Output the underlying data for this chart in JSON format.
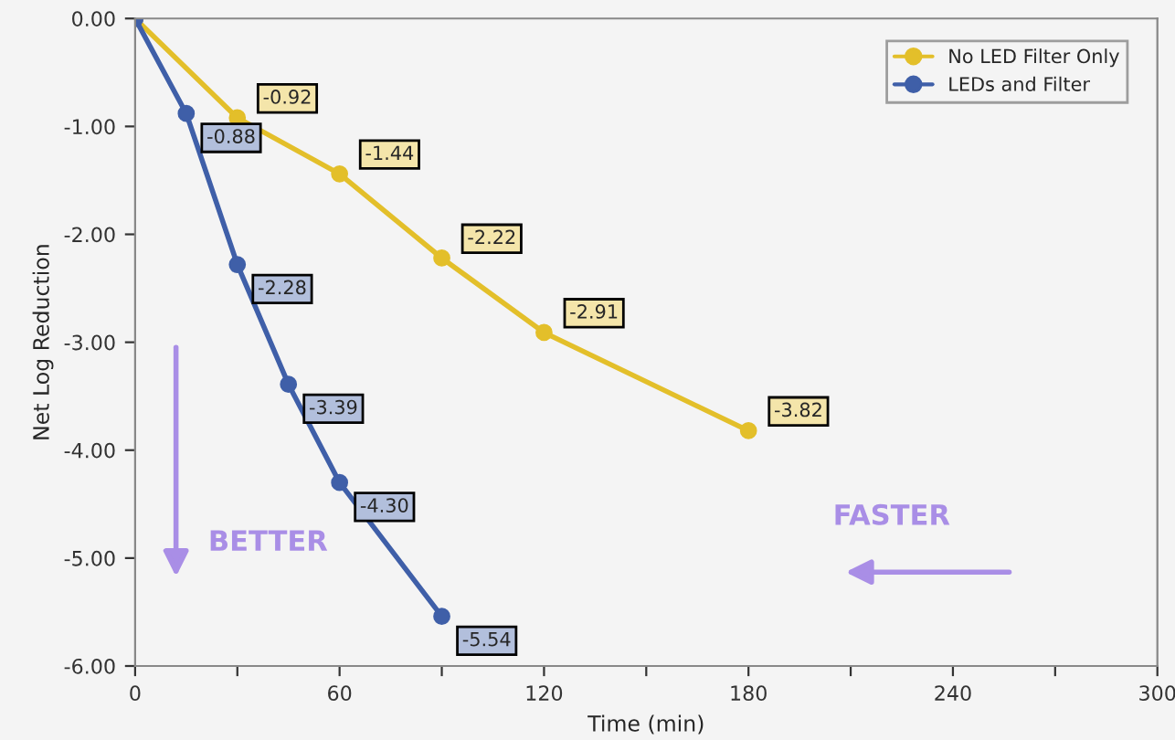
{
  "chart_data": {
    "type": "line",
    "xlabel": "Time (min)",
    "ylabel": "Net Log Reduction",
    "series": [
      {
        "name": "No LED Filter Only",
        "color": "#e3bf2a",
        "x": [
          0,
          30,
          60,
          90,
          120,
          180
        ],
        "values": [
          0,
          -0.92,
          -1.44,
          -2.22,
          -2.91,
          -3.82
        ],
        "value_labels": [
          null,
          "-0.92",
          "-1.44",
          "-2.22",
          "-2.91",
          "-3.82"
        ]
      },
      {
        "name": "LEDs and Filter",
        "color": "#3f5fa8",
        "x": [
          0,
          15,
          30,
          45,
          60,
          90
        ],
        "values": [
          0,
          -0.88,
          -2.28,
          -3.39,
          -4.3,
          -5.54
        ],
        "value_labels": [
          null,
          "-0.88",
          "-2.28",
          "-3.39",
          "-4.30",
          "-5.54"
        ]
      }
    ],
    "xlim": [
      0,
      300
    ],
    "ylim": [
      -6,
      0
    ],
    "xticks": [
      0,
      {
        "value": 30,
        "label": null
      },
      60,
      {
        "value": 90,
        "label": null
      },
      120,
      {
        "value": 150,
        "label": null
      },
      180,
      {
        "value": 210,
        "label": null
      },
      240,
      {
        "value": 270,
        "label": null
      },
      300
    ],
    "yticks": [
      {
        "value": 0,
        "label": "0.00"
      },
      {
        "value": -1,
        "label": "-1.00"
      },
      {
        "value": -2,
        "label": "-2.00"
      },
      {
        "value": -3,
        "label": "-3.00"
      },
      {
        "value": -4,
        "label": "-4.00"
      },
      {
        "value": -5,
        "label": "-5.00"
      },
      {
        "value": -6,
        "label": "-6.00"
      }
    ],
    "annotations": [
      "BETTER",
      "FASTER"
    ],
    "legend": "top right",
    "grid": false,
    "marker": "circle",
    "line_style": "solid"
  }
}
